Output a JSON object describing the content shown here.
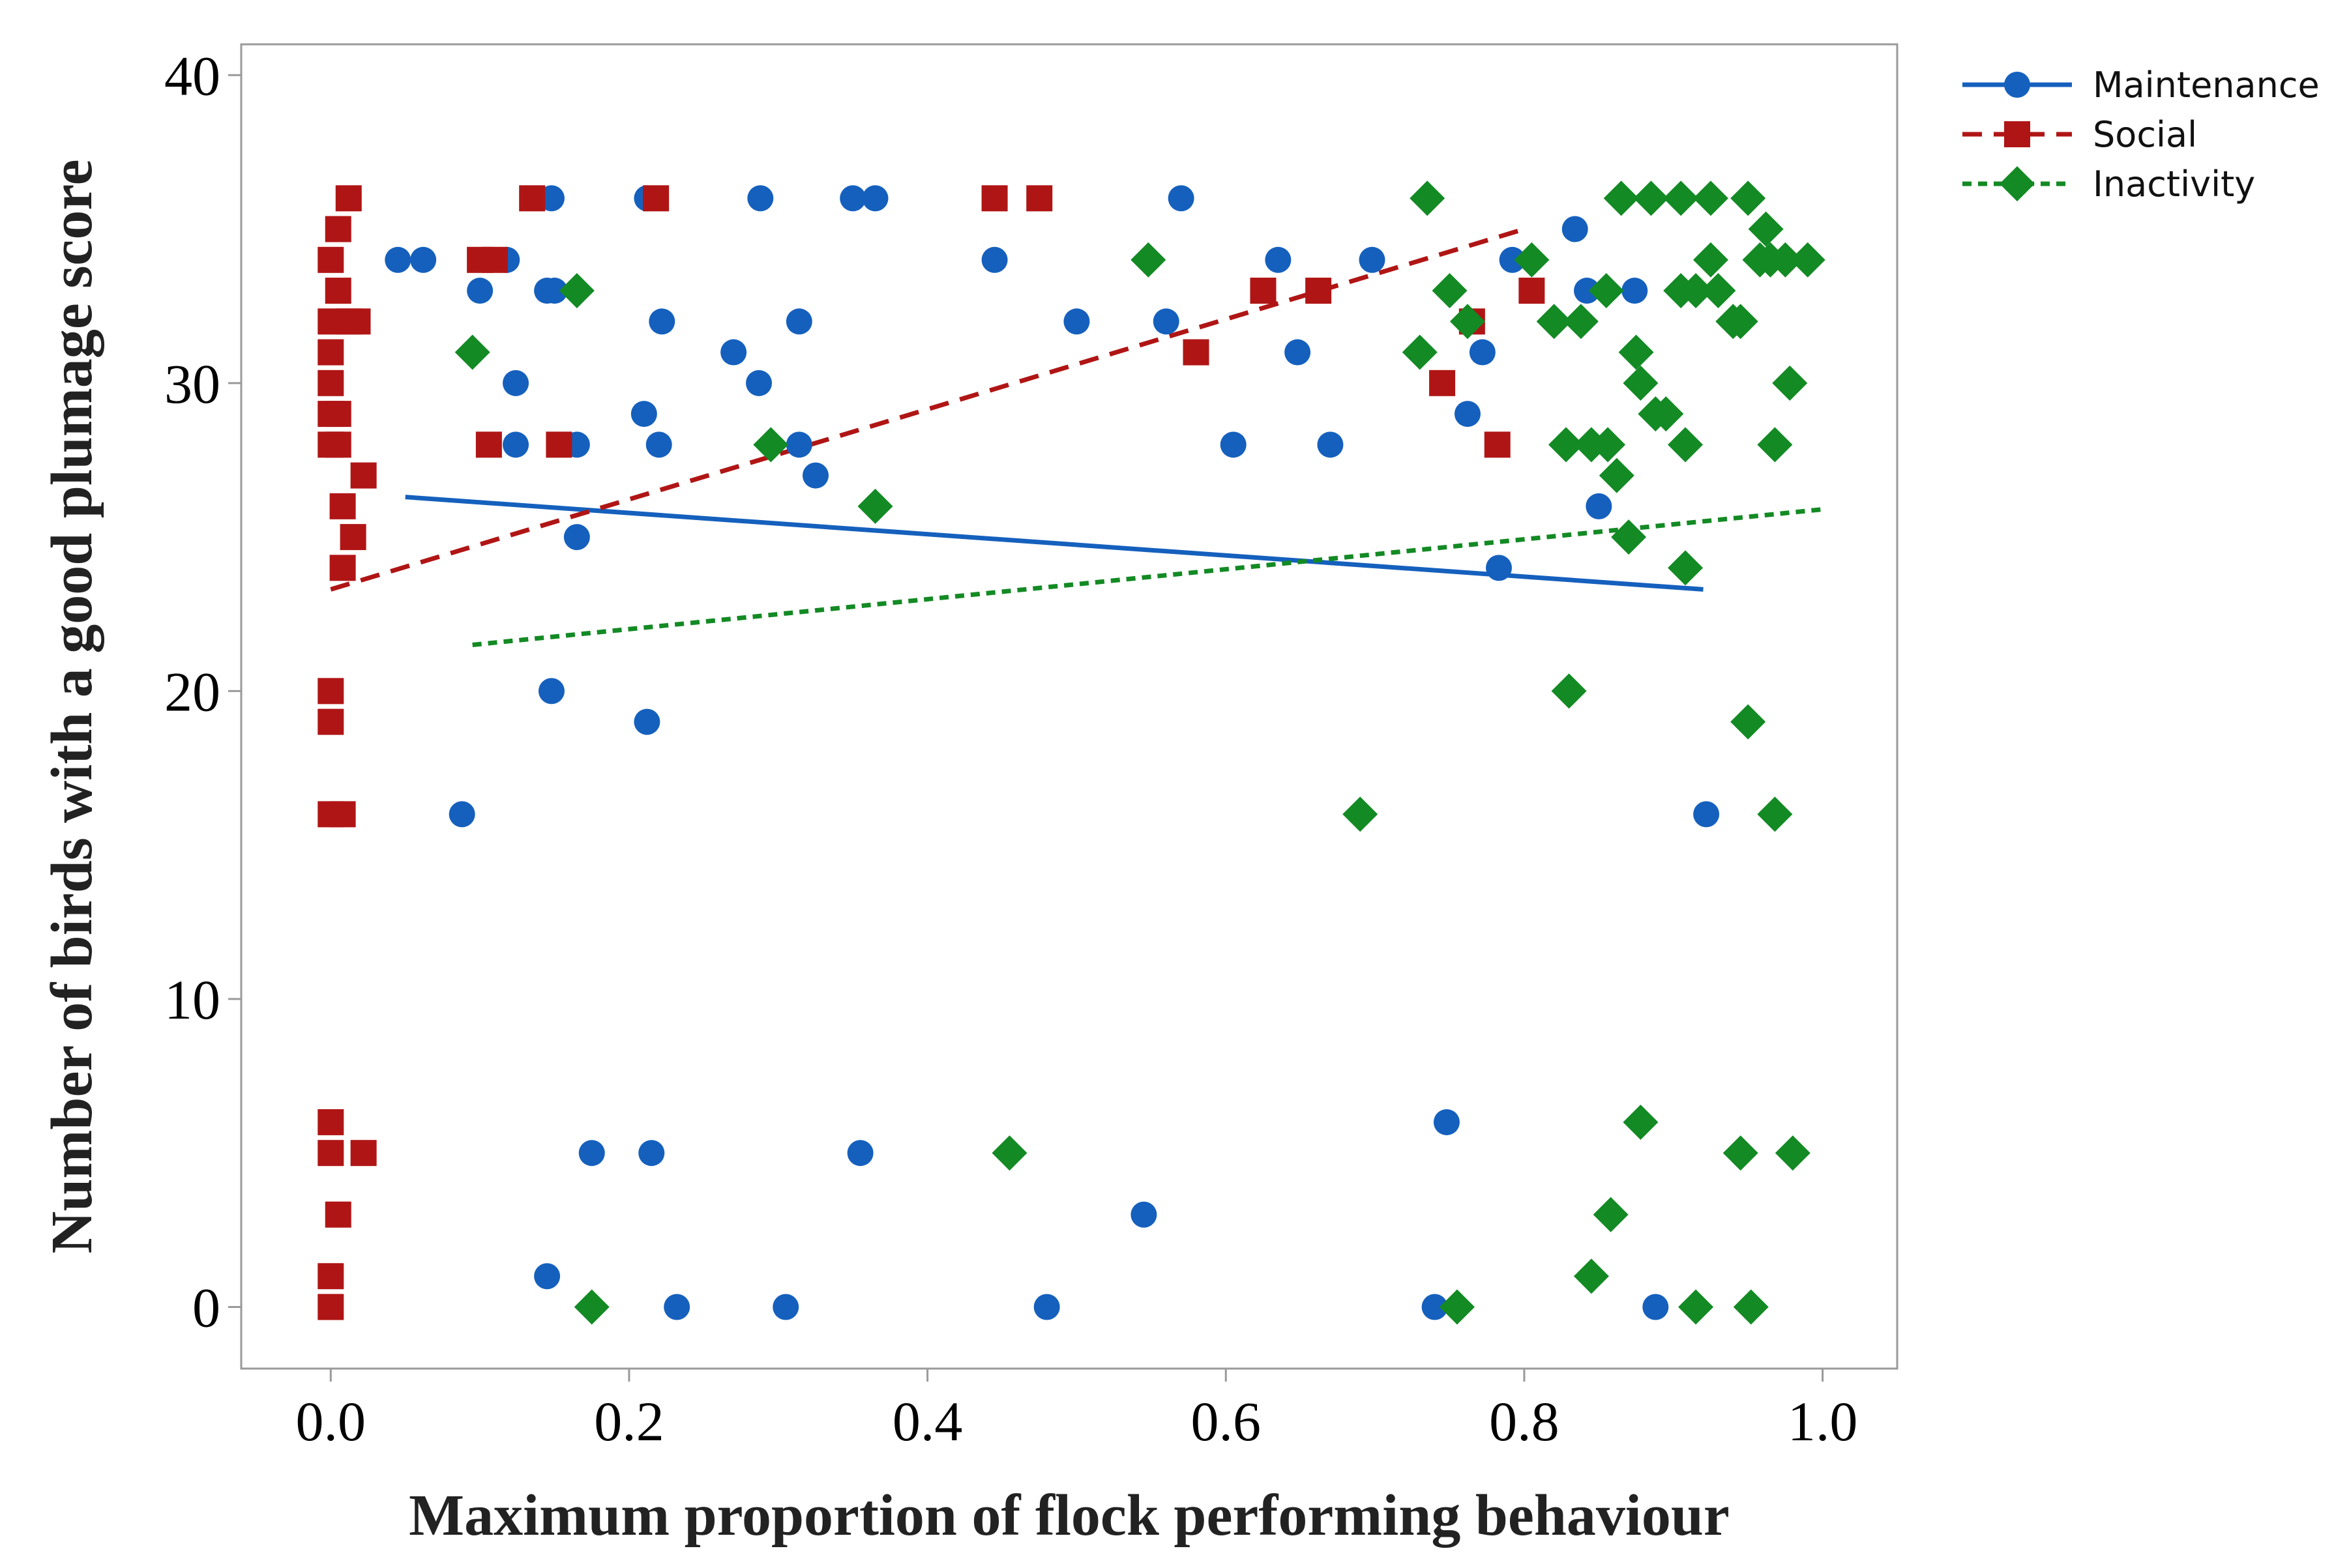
{
  "chart_data": {
    "type": "scatter",
    "xlabel": "Maximum proportion of flock performing behaviour",
    "ylabel": "Number of birds with a good plumage score",
    "xlim": [
      -0.06,
      1.05
    ],
    "ylim": [
      -2,
      41
    ],
    "xticks": [
      0.0,
      0.2,
      0.4,
      0.6,
      0.8,
      1.0
    ],
    "xtick_labels": [
      "0.0",
      "0.2",
      "0.4",
      "0.6",
      "0.8",
      "1.0"
    ],
    "yticks": [
      0,
      10,
      20,
      30,
      40
    ],
    "ytick_labels": [
      "0",
      "10",
      "20",
      "30",
      "40"
    ],
    "legend_position": "outside-top-right",
    "series": [
      {
        "name": "Maintenance",
        "color": "#1560BD",
        "marker": "circle",
        "line_style": "solid",
        "trend": [
          [
            0.05,
            26.3
          ],
          [
            0.92,
            23.3
          ]
        ],
        "points": [
          [
            0.045,
            34
          ],
          [
            0.062,
            34
          ],
          [
            0.1,
            33
          ],
          [
            0.118,
            34
          ],
          [
            0.124,
            30
          ],
          [
            0.124,
            28
          ],
          [
            0.145,
            33
          ],
          [
            0.148,
            36
          ],
          [
            0.15,
            33
          ],
          [
            0.165,
            28
          ],
          [
            0.165,
            25
          ],
          [
            0.148,
            20
          ],
          [
            0.145,
            1
          ],
          [
            0.175,
            5
          ],
          [
            0.21,
            29
          ],
          [
            0.212,
            36
          ],
          [
            0.22,
            28
          ],
          [
            0.222,
            32
          ],
          [
            0.212,
            19
          ],
          [
            0.215,
            5
          ],
          [
            0.232,
            0
          ],
          [
            0.27,
            31
          ],
          [
            0.287,
            30
          ],
          [
            0.288,
            36
          ],
          [
            0.088,
            16
          ],
          [
            0.314,
            32
          ],
          [
            0.314,
            28
          ],
          [
            0.325,
            27
          ],
          [
            0.305,
            0
          ],
          [
            0.35,
            36
          ],
          [
            0.365,
            36
          ],
          [
            0.355,
            5
          ],
          [
            0.445,
            34
          ],
          [
            0.48,
            0
          ],
          [
            0.5,
            32
          ],
          [
            0.545,
            3
          ],
          [
            0.56,
            32
          ],
          [
            0.57,
            36
          ],
          [
            0.605,
            28
          ],
          [
            0.635,
            34
          ],
          [
            0.648,
            31
          ],
          [
            0.67,
            28
          ],
          [
            0.698,
            34
          ],
          [
            0.74,
            0
          ],
          [
            0.748,
            6
          ],
          [
            0.762,
            29
          ],
          [
            0.772,
            31
          ],
          [
            0.783,
            24
          ],
          [
            0.792,
            34
          ],
          [
            0.834,
            35
          ],
          [
            0.842,
            33
          ],
          [
            0.85,
            26
          ],
          [
            0.874,
            33
          ],
          [
            0.888,
            0
          ],
          [
            0.922,
            16
          ]
        ]
      },
      {
        "name": "Social",
        "color": "#B01515",
        "marker": "square",
        "line_style": "dashed",
        "trend": [
          [
            0.0,
            23.3
          ],
          [
            0.8,
            35.0
          ]
        ],
        "points": [
          [
            0.0,
            34
          ],
          [
            0.0,
            32
          ],
          [
            0.0,
            31
          ],
          [
            0.0,
            30
          ],
          [
            0.0,
            29
          ],
          [
            0.0,
            28
          ],
          [
            0.0,
            20
          ],
          [
            0.0,
            19
          ],
          [
            0.0,
            16
          ],
          [
            0.0,
            6
          ],
          [
            0.0,
            5
          ],
          [
            0.0,
            1
          ],
          [
            0.0,
            0
          ],
          [
            0.005,
            35
          ],
          [
            0.005,
            33
          ],
          [
            0.005,
            29
          ],
          [
            0.005,
            28
          ],
          [
            0.005,
            3
          ],
          [
            0.008,
            26
          ],
          [
            0.008,
            24
          ],
          [
            0.008,
            16
          ],
          [
            0.012,
            36
          ],
          [
            0.012,
            32
          ],
          [
            0.015,
            25
          ],
          [
            0.018,
            32
          ],
          [
            0.022,
            27
          ],
          [
            0.022,
            5
          ],
          [
            0.1,
            34
          ],
          [
            0.106,
            28
          ],
          [
            0.11,
            34
          ],
          [
            0.135,
            36
          ],
          [
            0.153,
            28
          ],
          [
            0.218,
            36
          ],
          [
            0.445,
            36
          ],
          [
            0.475,
            36
          ],
          [
            0.58,
            31
          ],
          [
            0.625,
            33
          ],
          [
            0.662,
            33
          ],
          [
            0.745,
            30
          ],
          [
            0.765,
            32
          ],
          [
            0.782,
            28
          ],
          [
            0.805,
            33
          ]
        ]
      },
      {
        "name": "Inactivity",
        "color": "#138A24",
        "marker": "diamond",
        "line_style": "dotted",
        "trend": [
          [
            0.095,
            21.5
          ],
          [
            1.0,
            25.9
          ]
        ],
        "points": [
          [
            0.095,
            31
          ],
          [
            0.165,
            33
          ],
          [
            0.175,
            0
          ],
          [
            0.295,
            28
          ],
          [
            0.365,
            26
          ],
          [
            0.455,
            5
          ],
          [
            0.548,
            34
          ],
          [
            0.69,
            16
          ],
          [
            0.73,
            31
          ],
          [
            0.735,
            36
          ],
          [
            0.75,
            33
          ],
          [
            0.755,
            0
          ],
          [
            0.762,
            32
          ],
          [
            0.805,
            34
          ],
          [
            0.82,
            32
          ],
          [
            0.828,
            28
          ],
          [
            0.83,
            20
          ],
          [
            0.838,
            32
          ],
          [
            0.845,
            28
          ],
          [
            0.845,
            1
          ],
          [
            0.855,
            33
          ],
          [
            0.856,
            28
          ],
          [
            0.858,
            3
          ],
          [
            0.862,
            27
          ],
          [
            0.865,
            36
          ],
          [
            0.87,
            25
          ],
          [
            0.875,
            31
          ],
          [
            0.878,
            30
          ],
          [
            0.878,
            6
          ],
          [
            0.885,
            36
          ],
          [
            0.888,
            29
          ],
          [
            0.895,
            29
          ],
          [
            0.905,
            36
          ],
          [
            0.905,
            33
          ],
          [
            0.908,
            28
          ],
          [
            0.908,
            24
          ],
          [
            0.915,
            33
          ],
          [
            0.915,
            0
          ],
          [
            0.925,
            36
          ],
          [
            0.925,
            34
          ],
          [
            0.93,
            33
          ],
          [
            0.94,
            32
          ],
          [
            0.945,
            32
          ],
          [
            0.945,
            5
          ],
          [
            0.95,
            36
          ],
          [
            0.95,
            19
          ],
          [
            0.952,
            0
          ],
          [
            0.958,
            34
          ],
          [
            0.962,
            35
          ],
          [
            0.965,
            34
          ],
          [
            0.968,
            28
          ],
          [
            0.968,
            16
          ],
          [
            0.975,
            34
          ],
          [
            0.978,
            30
          ],
          [
            0.98,
            5
          ],
          [
            0.99,
            34
          ]
        ]
      }
    ]
  }
}
